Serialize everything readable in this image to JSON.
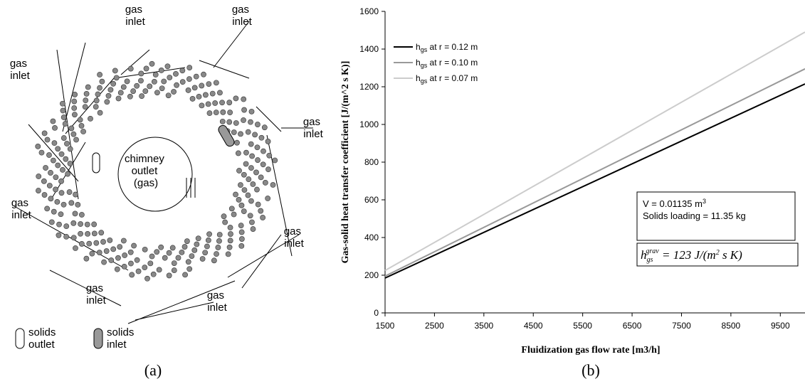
{
  "diagram": {
    "inlets": [
      "gas inlet",
      "gas inlet",
      "gas inlet",
      "gas inlet",
      "gas inlet",
      "gas inlet",
      "gas inlet",
      "gas inlet"
    ],
    "chimney": "chimney outlet (gas)",
    "legend": [
      "solids outlet",
      "solids inlet"
    ],
    "caption": "(a)"
  },
  "chart_data": {
    "type": "line",
    "caption": "(b)",
    "x_label": "Fluidization gas flow rate [m3/h]",
    "y_label": "Gas-solid heat transfer coefficient [J/(m^2 s K)]",
    "x": [
      1500,
      10000
    ],
    "series": [
      {
        "name": "hgs at r = 0.12 m",
        "color": "#000000",
        "values": [
          185,
          1215
        ]
      },
      {
        "name": "hgs at r = 0.10 m",
        "color": "#999999",
        "values": [
          195,
          1295
        ]
      },
      {
        "name": "hgs at r = 0.07 m",
        "color": "#cccccc",
        "values": [
          225,
          1490
        ]
      }
    ],
    "xlim": [
      1500,
      10000
    ],
    "xticks": [
      1500,
      2500,
      3500,
      4500,
      5500,
      6500,
      7500,
      8500,
      9500
    ],
    "ylim": [
      0,
      1600
    ],
    "yticks": [
      0,
      200,
      400,
      600,
      800,
      1000,
      1200,
      1400,
      1600
    ],
    "annotations": [
      "V = 0.01135 m3",
      "Solids loading = 11.35 kg",
      "hgsgrav = 123 J/(m2 s K)"
    ]
  }
}
